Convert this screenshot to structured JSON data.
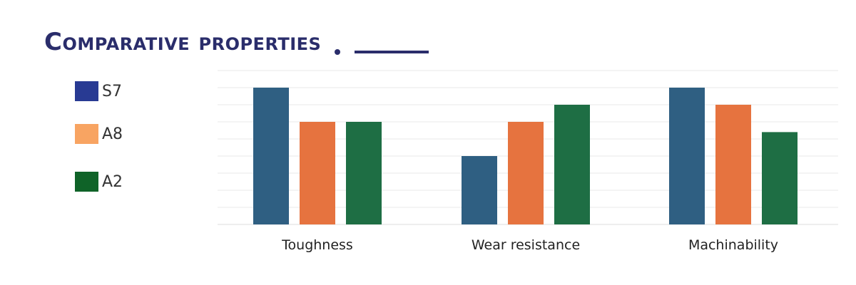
{
  "title": "Comparative properties",
  "colors": {
    "title": "#2a2d6b",
    "S7": "#2f5f82",
    "A8": "#e6733f",
    "A2": "#1e6e44",
    "legend_S7": "#283a93",
    "legend_A8": "#f8a462",
    "legend_A2": "#0f6328",
    "grid": "#e9e9e9"
  },
  "chart_data": {
    "type": "bar",
    "categories": [
      "Toughness",
      "Wear resistance",
      "Machinability"
    ],
    "series": [
      {
        "name": "S7",
        "values": [
          8,
          4,
          8
        ]
      },
      {
        "name": "A8",
        "values": [
          6,
          6,
          7
        ]
      },
      {
        "name": "A2",
        "values": [
          6,
          7,
          5.4
        ]
      }
    ],
    "ylim": [
      0,
      9
    ],
    "grid": true,
    "legend_position": "left"
  }
}
